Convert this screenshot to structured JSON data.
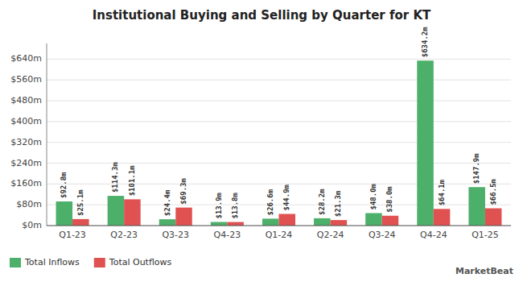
{
  "chart_data": {
    "type": "bar",
    "title": "Institutional Buying and Selling by Quarter for KT",
    "categories": [
      "Q1-23",
      "Q2-23",
      "Q3-23",
      "Q4-23",
      "Q1-24",
      "Q2-24",
      "Q3-24",
      "Q4-24",
      "Q1-25"
    ],
    "series": [
      {
        "name": "Total Inflows",
        "color": "#4caf6a",
        "values": [
          92.8,
          114.3,
          24.4,
          13.9,
          26.6,
          28.2,
          48.0,
          634.2,
          147.9
        ],
        "value_labels": [
          "$92.8m",
          "$114.3m",
          "$24.4m",
          "$13.9m",
          "$26.6m",
          "$28.2m",
          "$48.0m",
          "$634.2m",
          "$147.9m"
        ]
      },
      {
        "name": "Total Outflows",
        "color": "#e05252",
        "values": [
          25.1,
          101.1,
          69.3,
          13.8,
          44.9,
          21.3,
          38.0,
          64.1,
          66.5
        ],
        "value_labels": [
          "$25.1m",
          "$101.1m",
          "$69.3m",
          "$13.8m",
          "$44.9m",
          "$21.3m",
          "$38.0m",
          "$64.1m",
          "$66.5m"
        ]
      }
    ],
    "ylim": [
      0,
      700
    ],
    "yticks": [
      {
        "value": 0,
        "label": "$0m"
      },
      {
        "value": 80,
        "label": "$80m"
      },
      {
        "value": 160,
        "label": "$160m"
      },
      {
        "value": 240,
        "label": "$240m"
      },
      {
        "value": 320,
        "label": "$320m"
      },
      {
        "value": 400,
        "label": "$400m"
      },
      {
        "value": 480,
        "label": "$480m"
      },
      {
        "value": 560,
        "label": "$560m"
      },
      {
        "value": 640,
        "label": "$640m"
      }
    ],
    "grid": true,
    "data_labels": true,
    "legend": "lower left",
    "annotations": [
      "MarketBeat"
    ]
  }
}
